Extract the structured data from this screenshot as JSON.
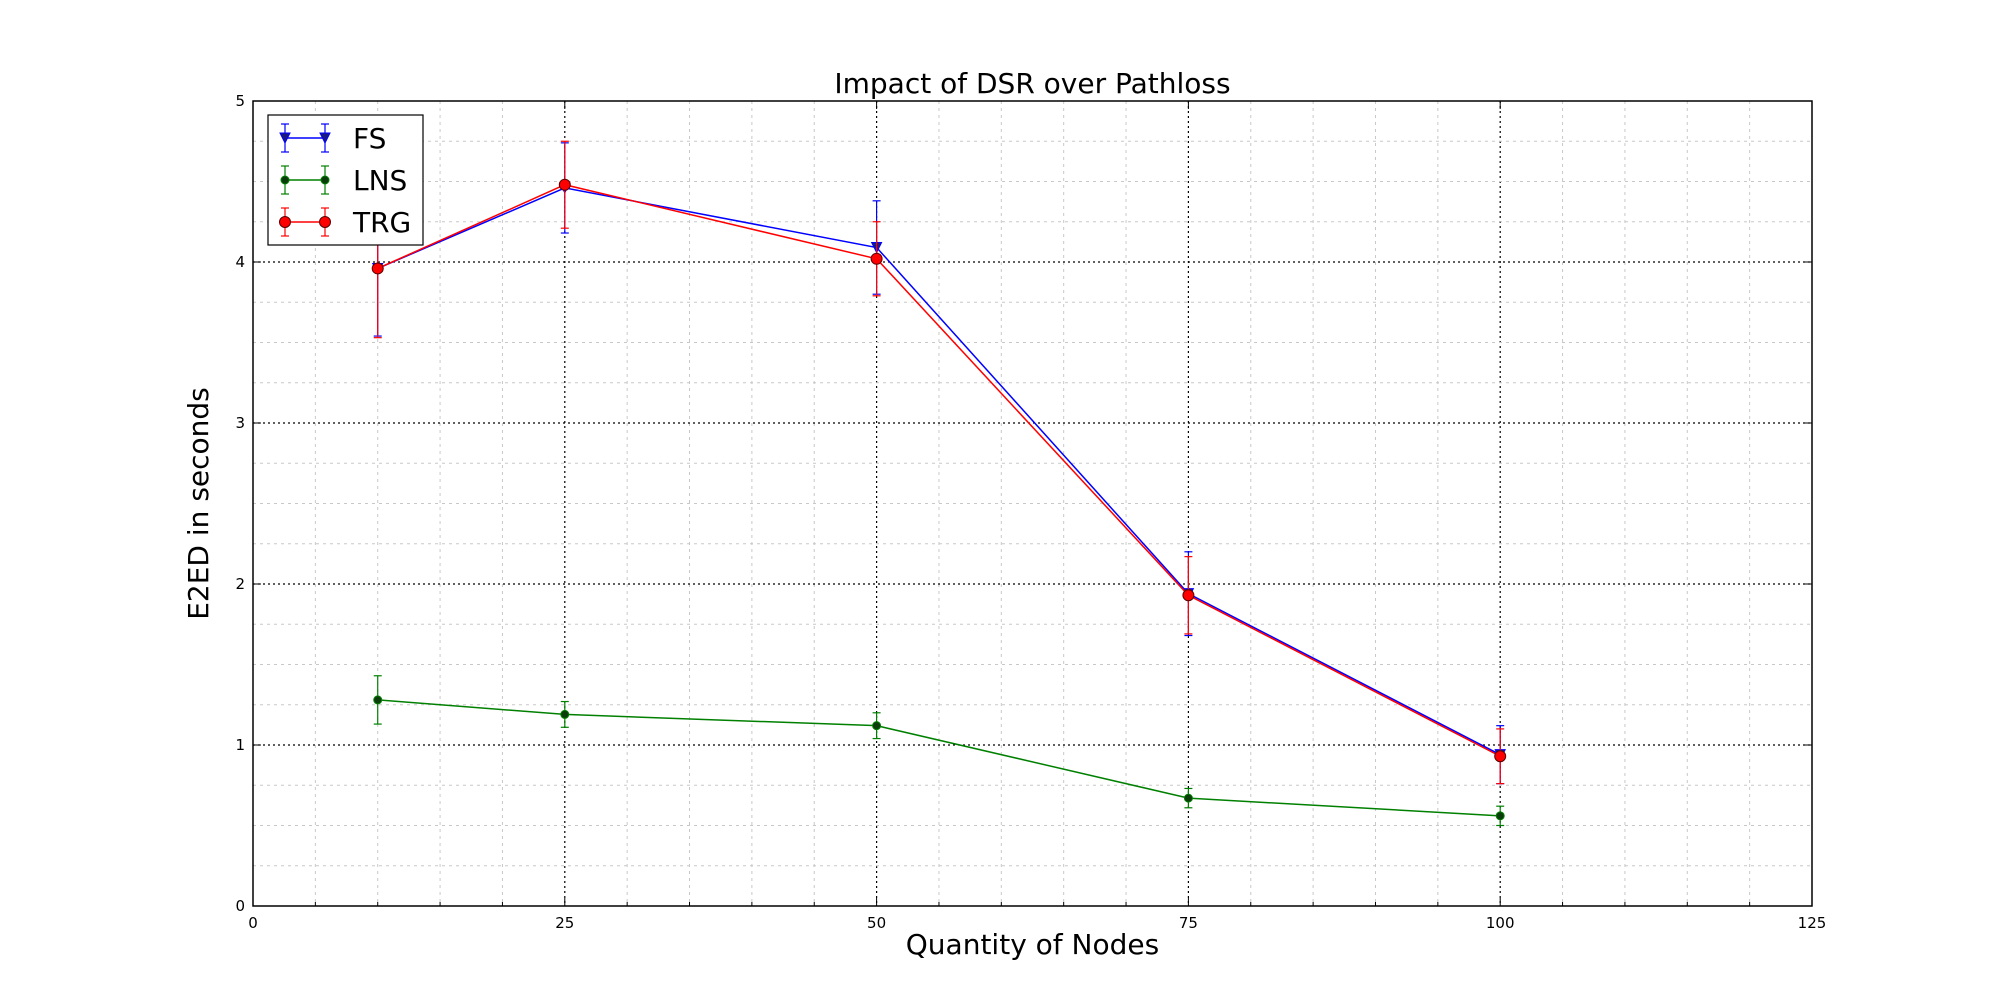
{
  "chart_data": {
    "type": "line",
    "title": "Impact of DSR over Pathloss",
    "xlabel": "Quantity of Nodes",
    "ylabel": "E2ED in seconds",
    "xlim": [
      0,
      125
    ],
    "ylim": [
      0,
      5
    ],
    "xticks": [
      "0",
      "25",
      "50",
      "75",
      "100",
      "125"
    ],
    "yticks": [
      "0",
      "1",
      "2",
      "3",
      "4",
      "5"
    ],
    "grid": true,
    "legend_position": "top-left",
    "x": [
      10,
      25,
      50,
      75,
      100
    ],
    "series": [
      {
        "name": "FS",
        "color": "#0000ff",
        "marker": "triangle-down",
        "values": [
          3.96,
          4.46,
          4.09,
          1.94,
          0.94
        ],
        "errors": [
          0.42,
          0.28,
          0.29,
          0.26,
          0.18
        ]
      },
      {
        "name": "LNS",
        "color": "#008000",
        "marker": "circle-small",
        "values": [
          1.28,
          1.19,
          1.12,
          0.67,
          0.56
        ],
        "errors": [
          0.15,
          0.08,
          0.08,
          0.06,
          0.06
        ]
      },
      {
        "name": "TRG",
        "color": "#ff0000",
        "marker": "circle",
        "values": [
          3.96,
          4.48,
          4.02,
          1.93,
          0.93
        ],
        "errors": [
          0.43,
          0.27,
          0.23,
          0.24,
          0.17
        ]
      }
    ]
  }
}
